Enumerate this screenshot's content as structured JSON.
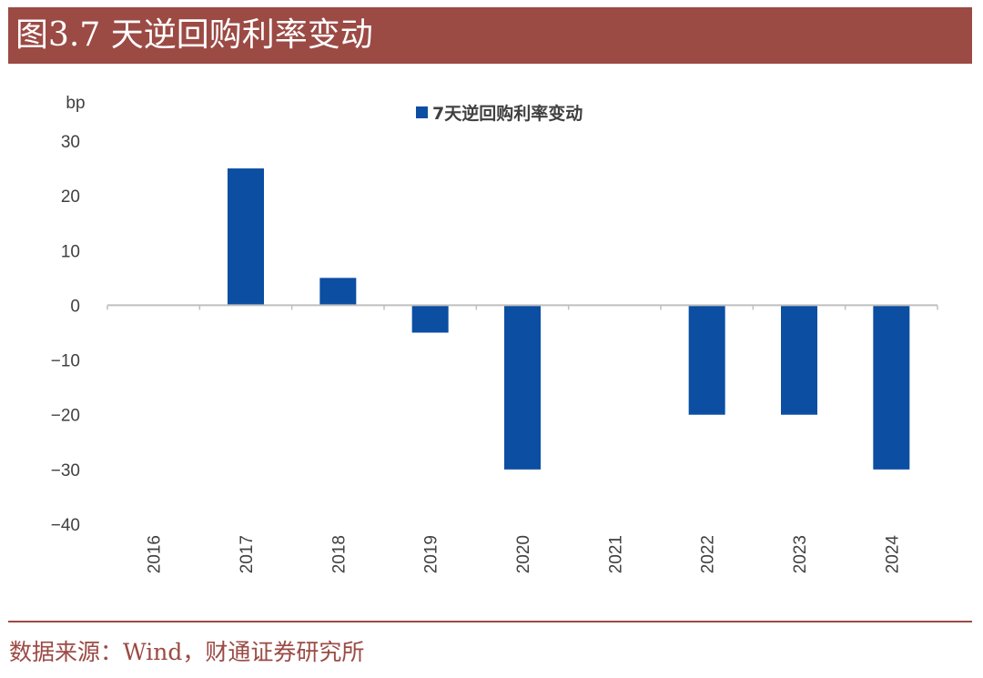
{
  "header": {
    "title": "图3.7 天逆回购利率变动"
  },
  "footer": {
    "source": "数据来源：Wind，财通证券研究所"
  },
  "colors": {
    "bar": "#0b4ea2",
    "title_bg": "#9b4a44",
    "axis": "#bfbfbf",
    "text": "#404040"
  },
  "chart_data": {
    "type": "bar",
    "unit_label": "bp",
    "categories": [
      "2016",
      "2017",
      "2018",
      "2019",
      "2020",
      "2021",
      "2022",
      "2023",
      "2024"
    ],
    "series": [
      {
        "name": "7天逆回购利率变动",
        "values": [
          0,
          25,
          5,
          -5,
          -30,
          0,
          -20,
          -20,
          -30
        ]
      }
    ],
    "ylim": [
      -40,
      30
    ],
    "yticks": [
      30,
      20,
      10,
      0,
      -10,
      -20,
      -30,
      -40
    ],
    "grid": false,
    "legend_position": "top-center"
  }
}
